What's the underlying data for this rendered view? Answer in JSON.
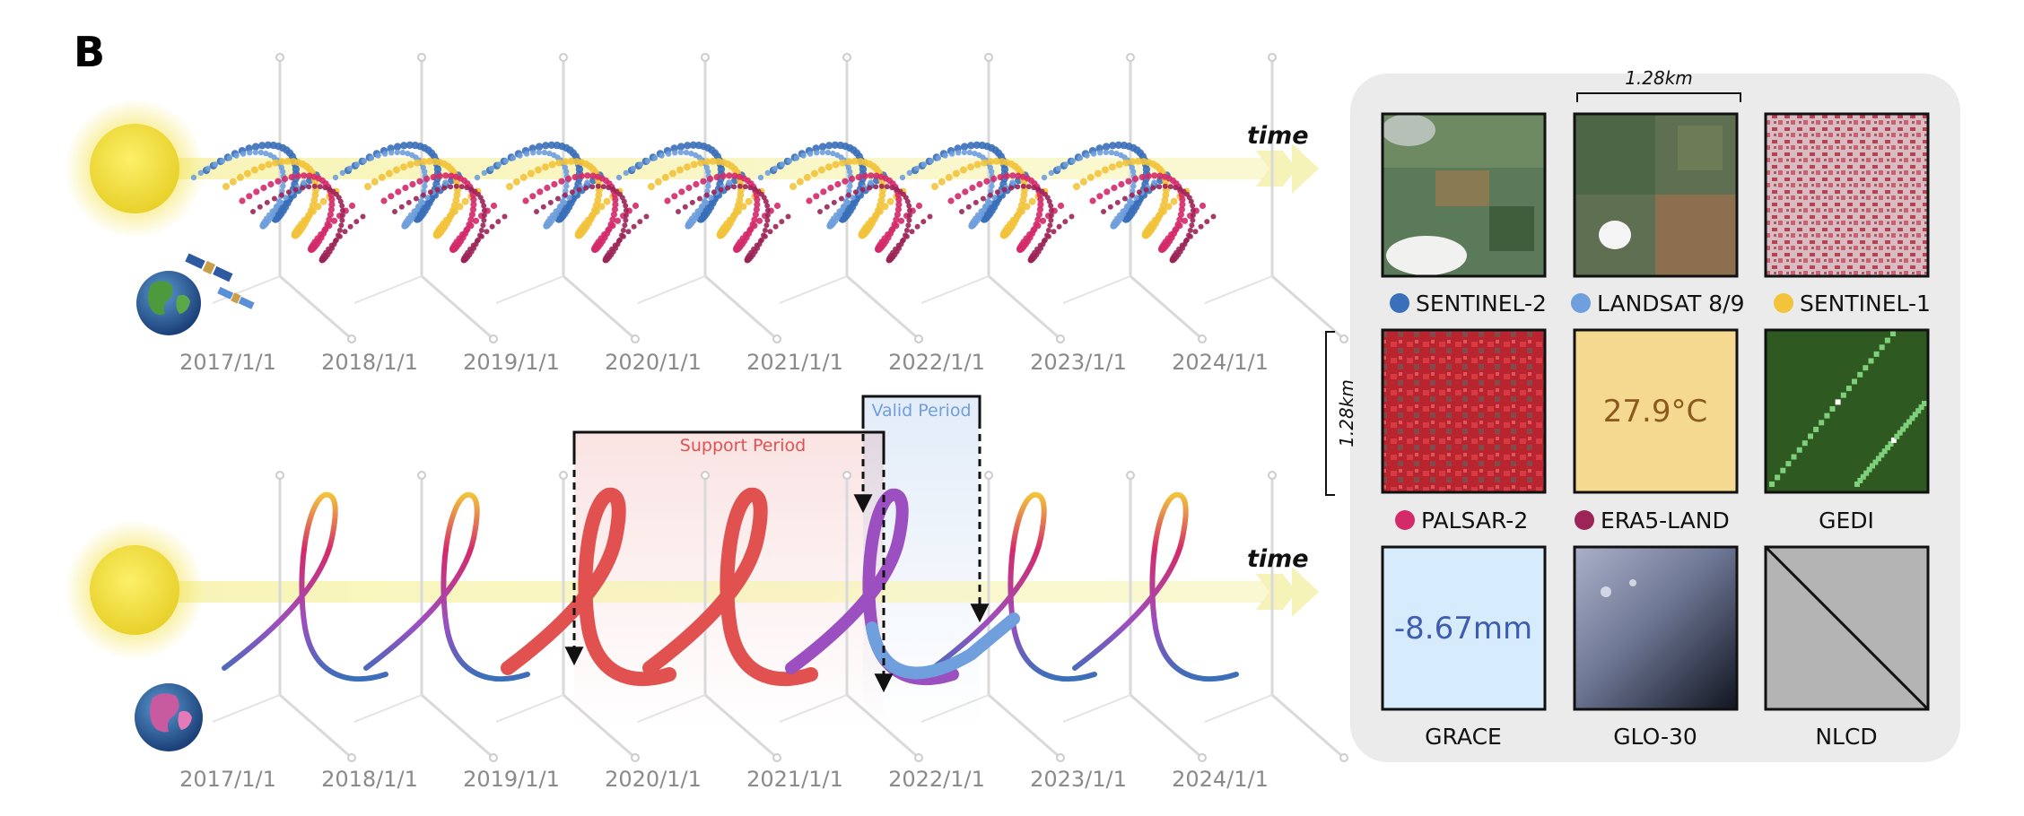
{
  "panel_label": "B",
  "time_label": "time",
  "top_dates": [
    "2017/1/1",
    "2018/1/1",
    "2019/1/1",
    "2020/1/1",
    "2021/1/1",
    "2022/1/1",
    "2023/1/1",
    "2024/1/1"
  ],
  "bottom_dates": [
    "2017/1/1",
    "2018/1/1",
    "2019/1/1",
    "2020/1/1",
    "2021/1/1",
    "2022/1/1",
    "2023/1/1",
    "2024/1/1"
  ],
  "support_period_label": "Support Period",
  "valid_period_label": "Valid Period",
  "scale": {
    "horizontal": "1.28km",
    "vertical": "1.28km"
  },
  "tiles": [
    {
      "label": "SENTINEL-2",
      "dot_color": "#3a6fb9"
    },
    {
      "label": "LANDSAT 8/9",
      "dot_color": "#6f9fdc"
    },
    {
      "label": "SENTINEL-1",
      "dot_color": "#f2c33b"
    },
    {
      "label": "PALSAR-2",
      "dot_color": "#d42a6a"
    },
    {
      "label": "ERA5-LAND",
      "dot_color": "#9c2457",
      "value": "27.9°C"
    },
    {
      "label": "GEDI"
    },
    {
      "label": "GRACE",
      "value": "-8.67mm"
    },
    {
      "label": "GLO-30"
    },
    {
      "label": "NLCD"
    }
  ],
  "colors": {
    "sun": "#f3df3a",
    "time_band": "#f6f3b8",
    "support_red": "#e0514f",
    "valid_blue": "#6f9fdc",
    "sentinel2_blue": "#3a6fb9",
    "landsat_blue": "#6f9fdc",
    "sentinel1_yellow": "#f2c33b",
    "palsar_pink": "#d42a6a",
    "era5_plum": "#9c2457",
    "transition_purple": "#9b4fc0",
    "panel_bg": "#ebebeb"
  }
}
